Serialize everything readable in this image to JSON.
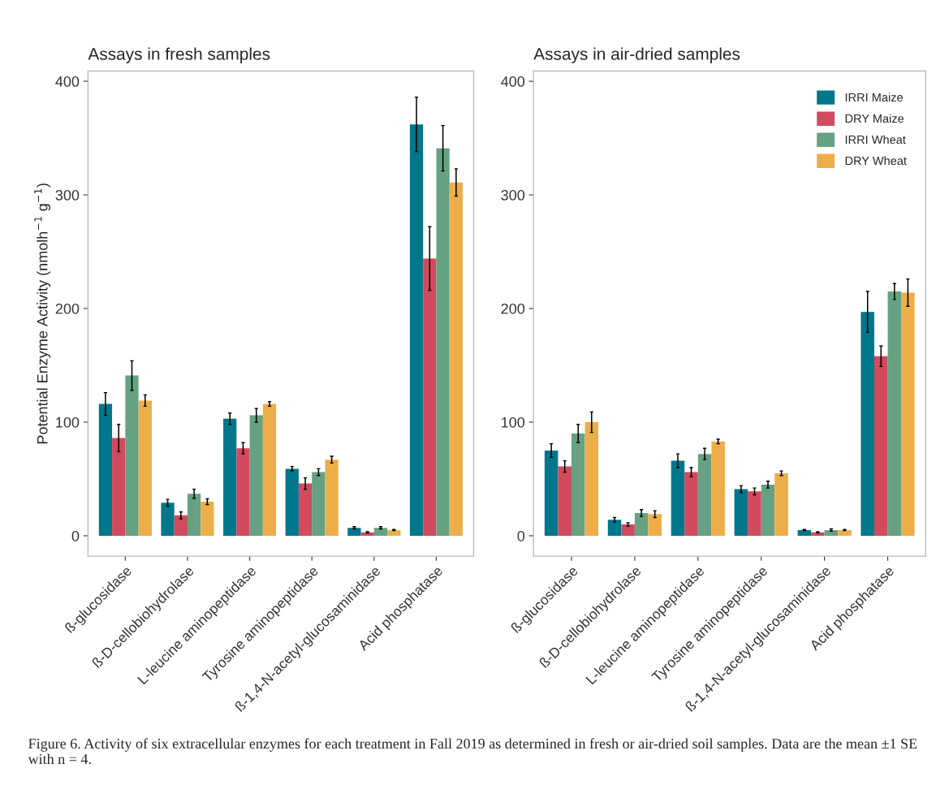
{
  "chart_data": [
    {
      "type": "bar",
      "title": "Assays in fresh samples",
      "ylabel": "Potential Enzyme Activity (nmolh$^{−1}$ g$^{−1}$)",
      "categories": [
        "ß-glucosidase",
        "ß-D-cellobiohydrolase",
        "L-leucine aminopeptidase",
        "Tyrosine aminopeptidase",
        "ß-1,4-N-acetyl-glucosaminidase",
        "Acid phosphatase"
      ],
      "series": [
        {
          "color": "#00778b",
          "values": [
            116,
            29,
            103,
            59,
            7,
            362
          ],
          "errors": [
            10,
            3,
            5,
            2,
            1,
            24
          ]
        },
        {
          "color": "#d14a5e",
          "values": [
            86,
            18,
            77,
            46,
            3,
            244
          ],
          "errors": [
            12,
            3,
            5,
            5,
            0.5,
            28
          ]
        },
        {
          "color": "#66a182",
          "values": [
            141,
            37,
            106,
            56,
            7,
            341
          ],
          "errors": [
            13,
            4,
            6,
            3,
            1,
            20
          ]
        },
        {
          "color": "#edae49",
          "values": [
            119,
            30,
            116,
            67,
            5,
            311
          ],
          "errors": [
            5,
            2.5,
            2,
            3,
            0.5,
            12
          ]
        }
      ],
      "ylim": [
        -18,
        409
      ],
      "yticks": [
        0,
        100,
        200,
        300,
        400
      ],
      "grid": false,
      "legend": false,
      "annotations": [
        "Figure 6. Activity of six extracellular enzymes for each treatment in Fall 2019 as determined in fresh or air-dried soil samples. Data are the mean ±1 SE with n = 4."
      ]
    },
    {
      "type": "bar",
      "title": "Assays in air-dried samples",
      "categories": [
        "ß-glucosidase",
        "ß-D-cellobiohydrolase",
        "L-leucine aminopeptidase",
        "Tyrosine aminopeptidase",
        "ß-1,4-N-acetyl-glucosaminidase",
        "Acid phosphatase"
      ],
      "series": [
        {
          "name": "IRRI Maize",
          "color": "#00778b",
          "values": [
            75,
            14,
            66,
            41,
            5,
            197
          ],
          "errors": [
            6,
            2,
            6,
            3,
            0.5,
            18
          ]
        },
        {
          "name": "DRY Maize",
          "color": "#d14a5e",
          "values": [
            61,
            10,
            56,
            39,
            3,
            158
          ],
          "errors": [
            5,
            1.5,
            4,
            3,
            0.5,
            9
          ]
        },
        {
          "name": "IRRI Wheat",
          "color": "#66a182",
          "values": [
            90,
            20,
            72,
            45,
            5,
            215
          ],
          "errors": [
            8,
            3,
            5,
            3,
            1,
            7
          ]
        },
        {
          "name": "DRY Wheat",
          "color": "#edae49",
          "values": [
            100,
            19,
            83,
            55,
            5,
            214
          ],
          "errors": [
            9,
            3,
            2,
            2,
            0.5,
            12
          ]
        }
      ],
      "ylim": [
        -18,
        409
      ],
      "yticks": [
        0,
        100,
        200,
        300,
        400
      ],
      "grid": false,
      "legend": "top right"
    }
  ]
}
